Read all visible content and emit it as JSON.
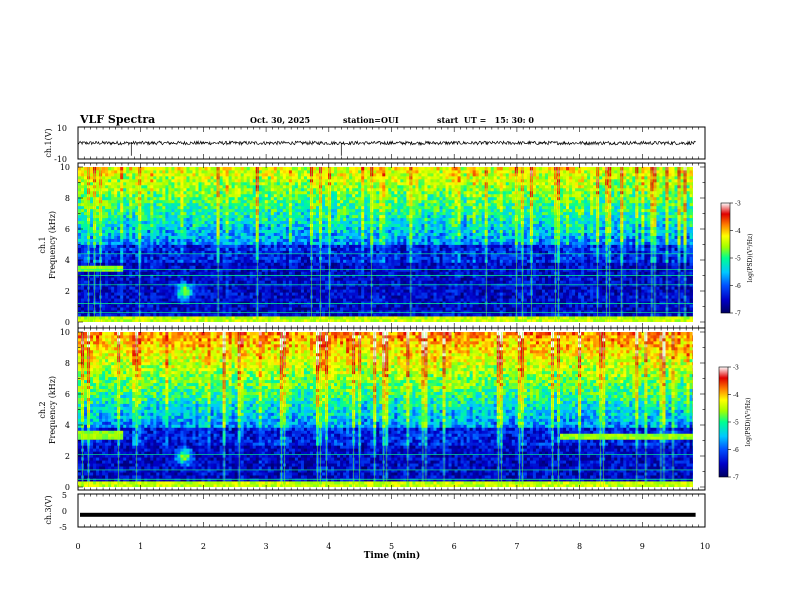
{
  "header": {
    "title": "VLF Spectra",
    "date": "Oct. 30, 2025",
    "station": "station=OUI",
    "start_ut": "start  UT =   15: 30: 0"
  },
  "chart_data": [
    {
      "type": "line",
      "ylabel": "ch.1(V)",
      "xlim": [
        0,
        10
      ],
      "ylim": [
        -10,
        10
      ],
      "y_tick_labels": [
        "10",
        "-10"
      ],
      "baseline_level": 0,
      "spike_times_min": [
        0.85,
        4.2
      ]
    },
    {
      "type": "heatmap",
      "ylabel": "ch.1\nFrequency (kHz)",
      "xlim": [
        0,
        9.85
      ],
      "ylim": [
        0,
        10
      ],
      "y_tick_labels": [
        "0",
        "2",
        "4",
        "6",
        "8",
        "10"
      ],
      "colorbar": {
        "label": "log(PSD)(V²/Hz)",
        "range": [
          -7,
          -3
        ],
        "tick_labels": [
          "-3",
          "-4",
          "-5",
          "-6",
          "-7"
        ]
      },
      "noise_floor_khz": 5.0,
      "line_freqs_khz": [
        0.6,
        1.2,
        2.4,
        3.0,
        3.4,
        4.4
      ],
      "features": [
        {
          "kind": "band",
          "t_start": 0.0,
          "t_end": 0.7,
          "f_low": 3.2,
          "f_high": 3.6
        },
        {
          "kind": "blob",
          "t": 1.7,
          "f": 2.0
        }
      ]
    },
    {
      "type": "heatmap",
      "ylabel": "ch.2\nFrequency (kHz)",
      "xlim": [
        0,
        9.85
      ],
      "ylim": [
        0,
        10
      ],
      "y_tick_labels": [
        "0",
        "2",
        "4",
        "6",
        "8",
        "10"
      ],
      "colorbar": {
        "label": "log(PSD)(V²/Hz)",
        "range": [
          -7,
          -3
        ],
        "tick_labels": [
          "-3",
          "-4",
          "-5",
          "-6",
          "-7"
        ]
      },
      "noise_floor_khz": 3.8,
      "line_freqs_khz": [
        0.5,
        1.1,
        2.1
      ],
      "features": [
        {
          "kind": "band",
          "t_start": 0.0,
          "t_end": 0.7,
          "f_low": 3.0,
          "f_high": 3.6
        },
        {
          "kind": "band",
          "t_start": 7.7,
          "t_end": 9.85,
          "f_low": 3.1,
          "f_high": 3.5
        },
        {
          "kind": "blob",
          "t": 1.7,
          "f": 2.0
        }
      ]
    },
    {
      "type": "line",
      "ylabel": "ch.3(V)",
      "xlim": [
        0,
        10
      ],
      "ylim": [
        -5,
        5
      ],
      "y_tick_labels": [
        "5",
        "0",
        "-5"
      ],
      "baseline_level": -1.3
    }
  ],
  "x_axis": {
    "label": "Time (min)",
    "range": [
      0,
      10
    ],
    "tick_labels": [
      "0",
      "1",
      "2",
      "3",
      "4",
      "5",
      "6",
      "7",
      "8",
      "9",
      "10"
    ]
  },
  "colors": {
    "colormap": [
      "#000060",
      "#0000c8",
      "#0050ff",
      "#00c8ff",
      "#00ff90",
      "#a0ff00",
      "#ffff00",
      "#ff8000",
      "#e00000",
      "#ffffff"
    ]
  }
}
